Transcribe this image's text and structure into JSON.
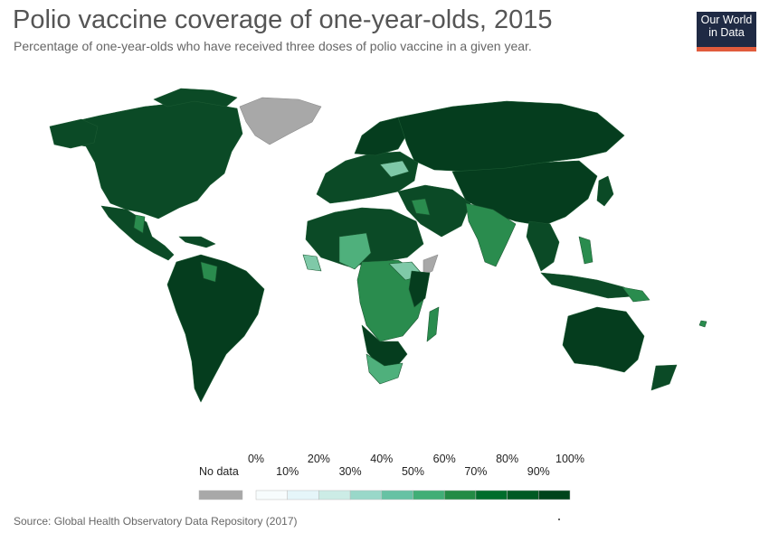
{
  "header": {
    "title": "Polio vaccine coverage of one-year-olds, 2015",
    "subtitle": "Percentage of one-year-olds who have received three doses of polio vaccine in a given year."
  },
  "logo": {
    "line1": "Our World",
    "line2": "in Data"
  },
  "legend": {
    "no_data_label": "No data",
    "no_data_color": "#a8a8a8",
    "top_labels": [
      "0%",
      "20%",
      "40%",
      "60%",
      "80%",
      "100%"
    ],
    "bottom_labels": [
      "10%",
      "30%",
      "50%",
      "70%",
      "90%"
    ],
    "bins": [
      {
        "range": "0-10%",
        "color": "#f7fcfd"
      },
      {
        "range": "10-20%",
        "color": "#e5f5f9"
      },
      {
        "range": "20-30%",
        "color": "#ccece6"
      },
      {
        "range": "30-40%",
        "color": "#99d8c9"
      },
      {
        "range": "40-50%",
        "color": "#66c2a4"
      },
      {
        "range": "50-60%",
        "color": "#41ae76"
      },
      {
        "range": "60-70%",
        "color": "#238b45"
      },
      {
        "range": "70-80%",
        "color": "#006d2c"
      },
      {
        "range": "80-90%",
        "color": "#005a24"
      },
      {
        "range": "90-100%",
        "color": "#00441b"
      }
    ]
  },
  "map_colors": {
    "high": "#0b4a26",
    "very_high": "#053d1e",
    "mid": "#2a8c4e",
    "lowmid": "#4fb07c",
    "low": "#7fc9a8",
    "nodata": "#a8a8a8",
    "border": "#1c5a33"
  },
  "footer": {
    "source": "Source: Global Health Observatory Data Repository (2017)"
  }
}
